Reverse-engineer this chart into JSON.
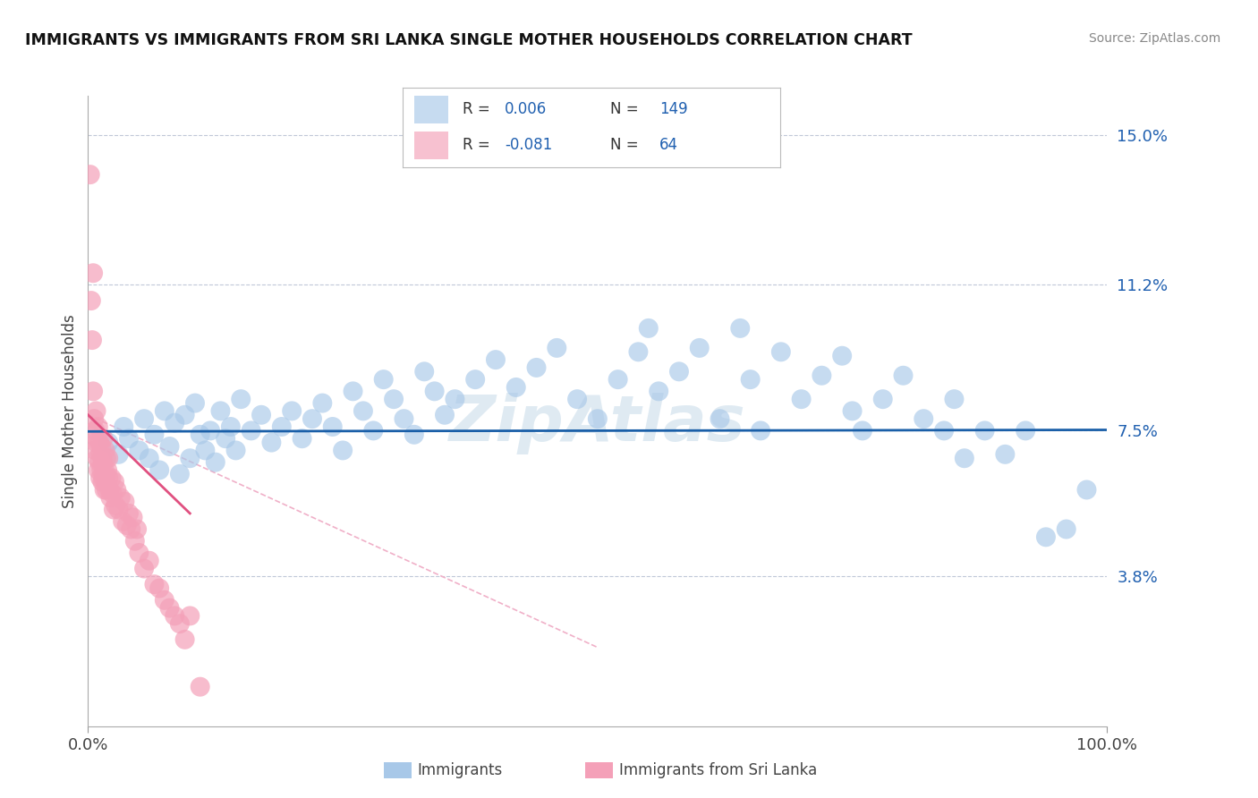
{
  "title": "IMMIGRANTS VS IMMIGRANTS FROM SRI LANKA SINGLE MOTHER HOUSEHOLDS CORRELATION CHART",
  "source": "Source: ZipAtlas.com",
  "ylabel": "Single Mother Households",
  "x_min": 0.0,
  "x_max": 1.0,
  "y_min": 0.0,
  "y_max": 0.16,
  "y_ticks": [
    0.038,
    0.075,
    0.112,
    0.15
  ],
  "y_tick_labels": [
    "3.8%",
    "7.5%",
    "11.2%",
    "15.0%"
  ],
  "x_tick_labels": [
    "0.0%",
    "100.0%"
  ],
  "color_blue": "#a8c8e8",
  "color_pink": "#f4a0b8",
  "color_blue_line": "#1a5fa8",
  "color_pink_line": "#e05080",
  "color_pink_dashed": "#f0b0c8",
  "background_color": "#ffffff",
  "grid_color": "#c0c8d8",
  "blue_line_x": [
    0.0,
    1.0
  ],
  "blue_line_y": [
    0.0748,
    0.0752
  ],
  "pink_line_x": [
    0.0,
    0.1
  ],
  "pink_line_y": [
    0.079,
    0.054
  ],
  "pink_dashed_line_x": [
    0.0,
    0.5
  ],
  "pink_dashed_line_y": [
    0.079,
    0.02
  ],
  "blue_scatter_x": [
    0.02,
    0.03,
    0.035,
    0.04,
    0.05,
    0.055,
    0.06,
    0.065,
    0.07,
    0.075,
    0.08,
    0.085,
    0.09,
    0.095,
    0.1,
    0.105,
    0.11,
    0.115,
    0.12,
    0.125,
    0.13,
    0.135,
    0.14,
    0.145,
    0.15,
    0.16,
    0.17,
    0.18,
    0.19,
    0.2,
    0.21,
    0.22,
    0.23,
    0.24,
    0.25,
    0.26,
    0.27,
    0.28,
    0.29,
    0.3,
    0.31,
    0.32,
    0.33,
    0.34,
    0.35,
    0.36,
    0.38,
    0.4,
    0.42,
    0.44,
    0.46,
    0.48,
    0.5,
    0.52,
    0.54,
    0.55,
    0.56,
    0.58,
    0.6,
    0.62,
    0.64,
    0.65,
    0.66,
    0.68,
    0.7,
    0.72,
    0.74,
    0.75,
    0.76,
    0.78,
    0.8,
    0.82,
    0.84,
    0.85,
    0.86,
    0.88,
    0.9,
    0.92,
    0.94,
    0.96,
    0.98
  ],
  "blue_scatter_y": [
    0.072,
    0.069,
    0.076,
    0.073,
    0.07,
    0.078,
    0.068,
    0.074,
    0.065,
    0.08,
    0.071,
    0.077,
    0.064,
    0.079,
    0.068,
    0.082,
    0.074,
    0.07,
    0.075,
    0.067,
    0.08,
    0.073,
    0.076,
    0.07,
    0.083,
    0.075,
    0.079,
    0.072,
    0.076,
    0.08,
    0.073,
    0.078,
    0.082,
    0.076,
    0.07,
    0.085,
    0.08,
    0.075,
    0.088,
    0.083,
    0.078,
    0.074,
    0.09,
    0.085,
    0.079,
    0.083,
    0.088,
    0.093,
    0.086,
    0.091,
    0.096,
    0.083,
    0.078,
    0.088,
    0.095,
    0.101,
    0.085,
    0.09,
    0.096,
    0.078,
    0.101,
    0.088,
    0.075,
    0.095,
    0.083,
    0.089,
    0.094,
    0.08,
    0.075,
    0.083,
    0.089,
    0.078,
    0.075,
    0.083,
    0.068,
    0.075,
    0.069,
    0.075,
    0.048,
    0.05,
    0.06
  ],
  "pink_scatter_x": [
    0.002,
    0.003,
    0.004,
    0.005,
    0.005,
    0.006,
    0.007,
    0.007,
    0.008,
    0.008,
    0.009,
    0.009,
    0.01,
    0.01,
    0.011,
    0.011,
    0.012,
    0.012,
    0.013,
    0.013,
    0.014,
    0.014,
    0.015,
    0.015,
    0.015,
    0.016,
    0.016,
    0.017,
    0.017,
    0.018,
    0.018,
    0.019,
    0.02,
    0.02,
    0.021,
    0.022,
    0.023,
    0.024,
    0.025,
    0.026,
    0.027,
    0.028,
    0.03,
    0.032,
    0.034,
    0.036,
    0.038,
    0.04,
    0.042,
    0.044,
    0.046,
    0.048,
    0.05,
    0.055,
    0.06,
    0.065,
    0.07,
    0.075,
    0.08,
    0.085,
    0.09,
    0.095,
    0.1,
    0.11
  ],
  "pink_scatter_y": [
    0.14,
    0.108,
    0.098,
    0.115,
    0.085,
    0.078,
    0.075,
    0.07,
    0.08,
    0.072,
    0.068,
    0.073,
    0.076,
    0.065,
    0.072,
    0.067,
    0.063,
    0.069,
    0.065,
    0.071,
    0.068,
    0.062,
    0.073,
    0.067,
    0.063,
    0.06,
    0.065,
    0.07,
    0.063,
    0.068,
    0.06,
    0.065,
    0.063,
    0.068,
    0.06,
    0.058,
    0.063,
    0.059,
    0.055,
    0.062,
    0.056,
    0.06,
    0.055,
    0.058,
    0.052,
    0.057,
    0.051,
    0.054,
    0.05,
    0.053,
    0.047,
    0.05,
    0.044,
    0.04,
    0.042,
    0.036,
    0.035,
    0.032,
    0.03,
    0.028,
    0.026,
    0.022,
    0.028,
    0.01
  ]
}
